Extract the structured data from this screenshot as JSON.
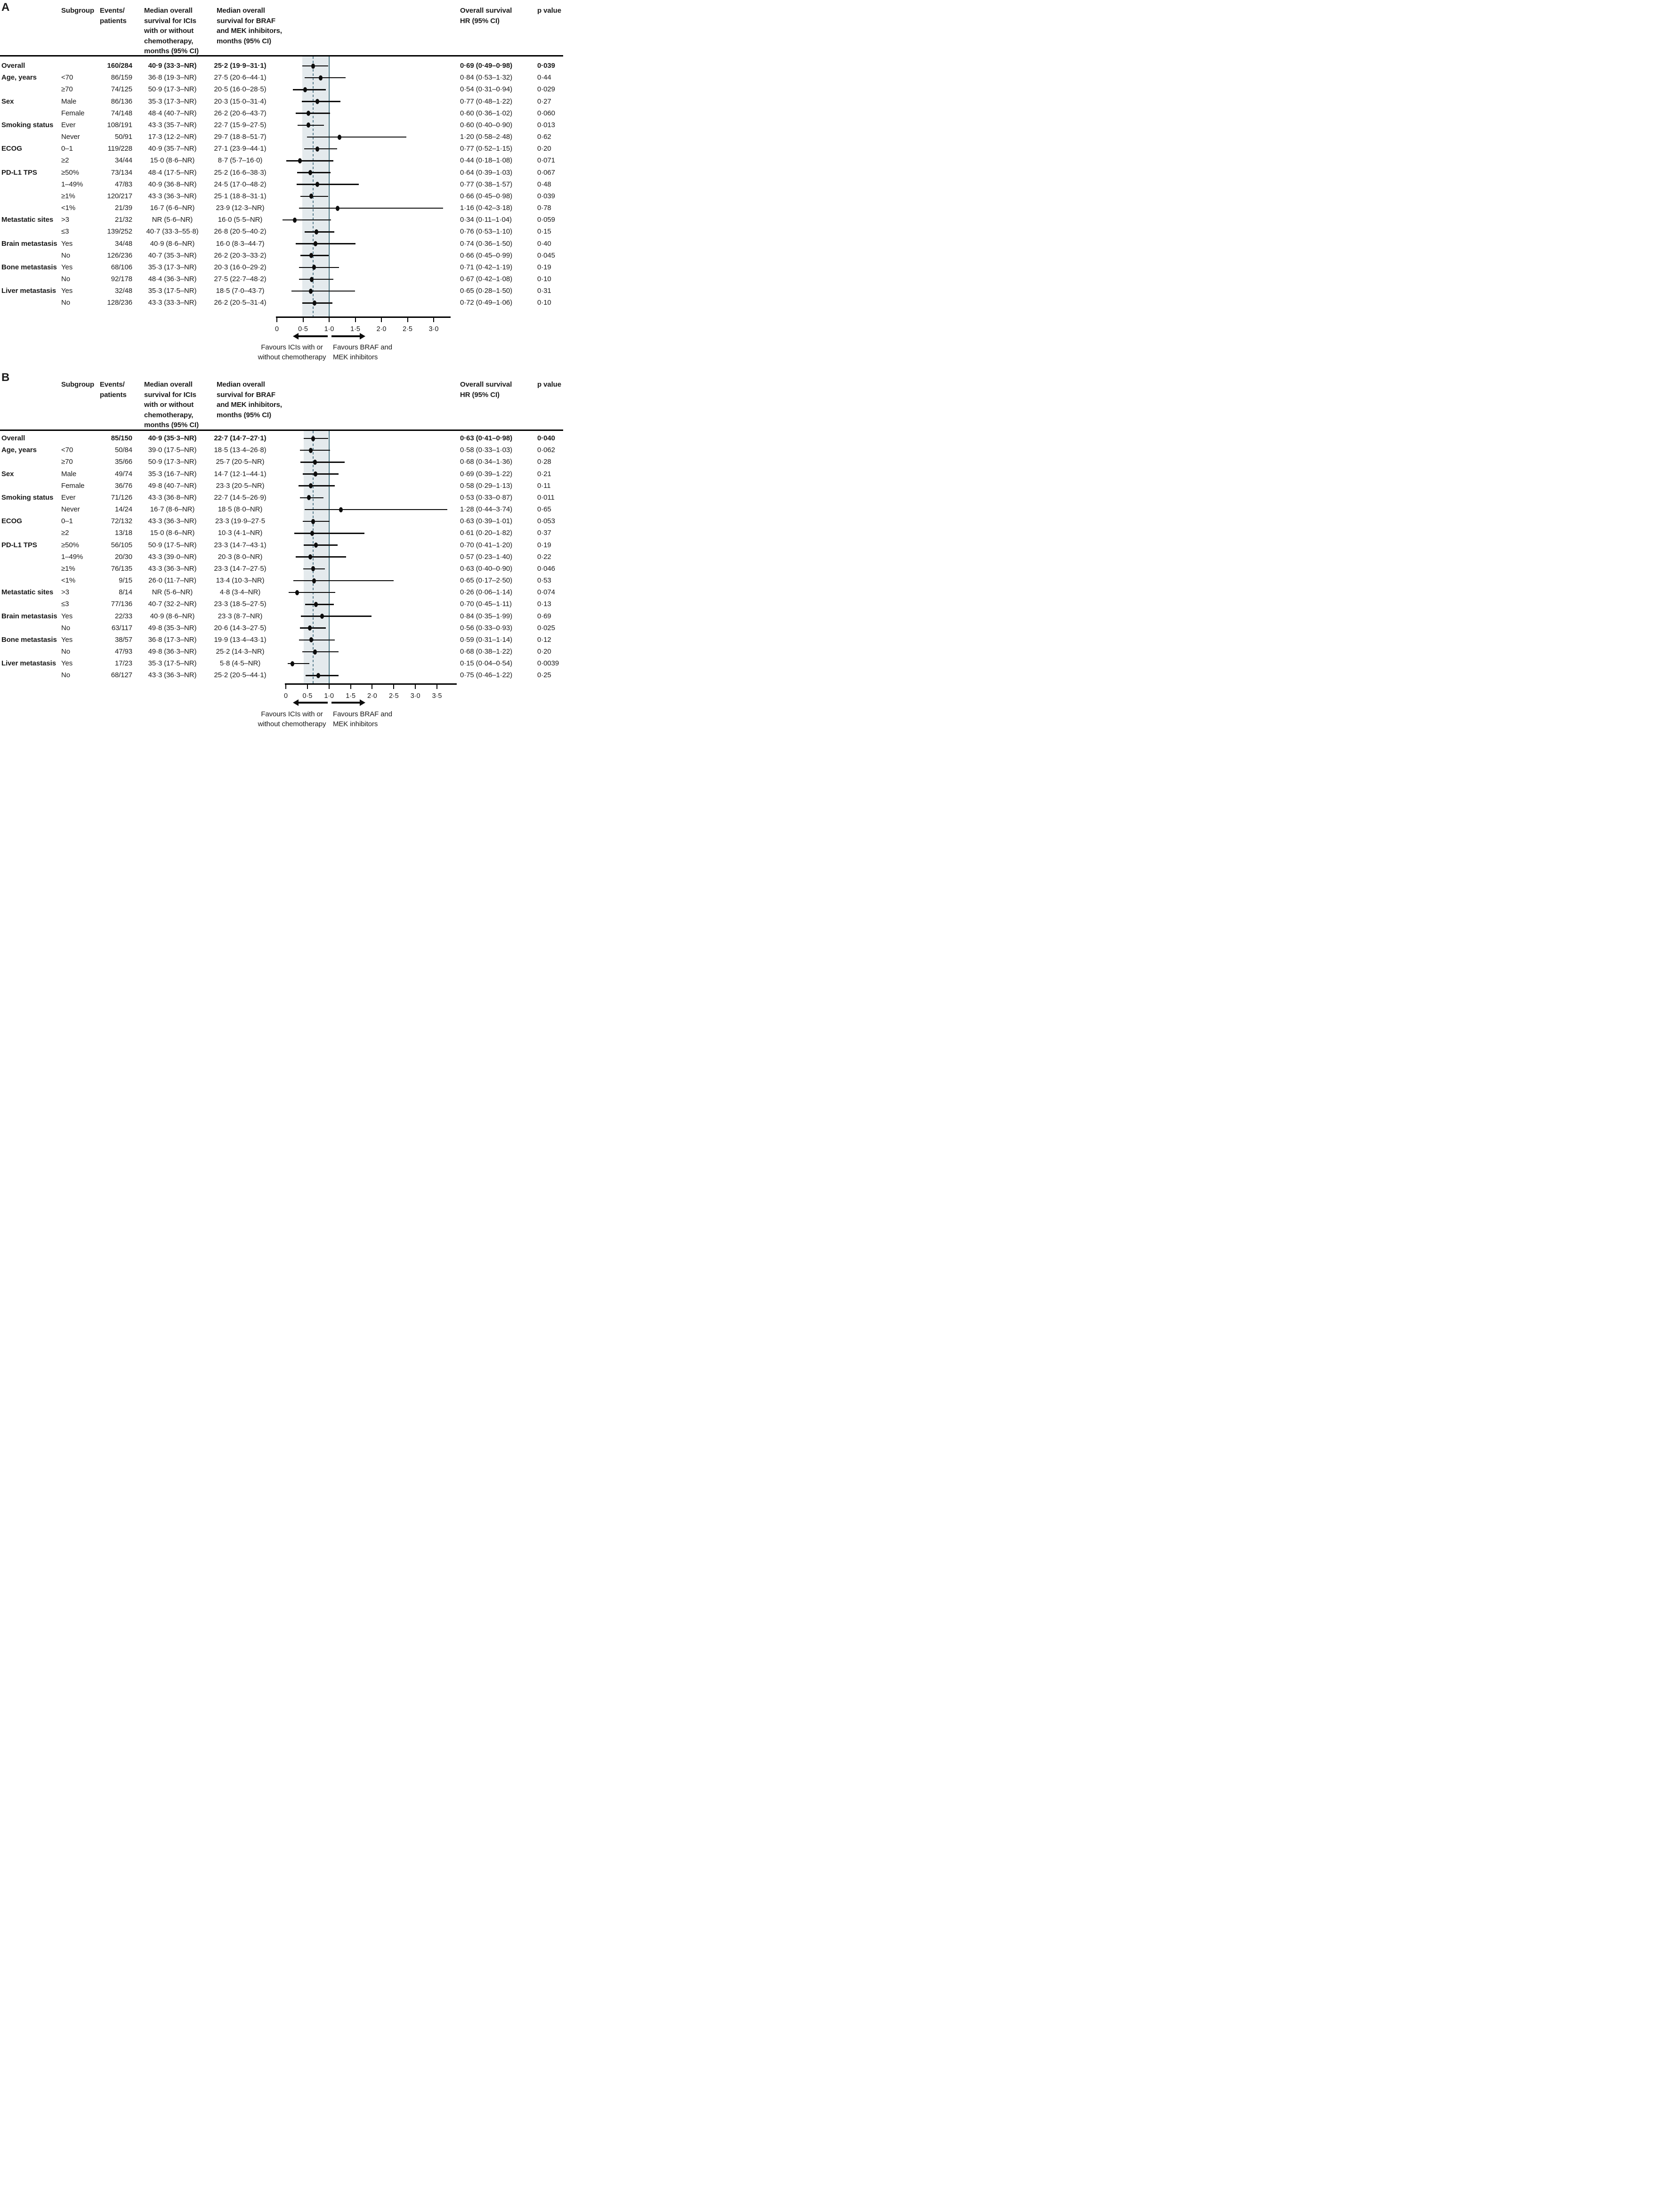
{
  "colors": {
    "band": "#e4eaed",
    "ref_line": "#44717f",
    "dashed_line": "#5c8191",
    "marker": "#0d0d0d",
    "text": "#1a1a1a"
  },
  "chart_data": [
    {
      "type": "forest",
      "panel": "A",
      "columns": {
        "subgroup": "Subgroup",
        "events": [
          "Events/",
          "patients"
        ],
        "ici": [
          "Median overall",
          "survival for ICIs",
          "with or without",
          "chemotherapy,",
          "months (95% CI)"
        ],
        "braf": [
          "Median overall",
          "survival for BRAF",
          "and MEK inhibitors,",
          "months (95% CI)"
        ],
        "hr": [
          "Overall survival",
          "HR (95% CI)"
        ],
        "p": "p value"
      },
      "axis": {
        "ticks": [
          {
            "v": 0,
            "label": "0"
          },
          {
            "v": 0.5,
            "label": "0·5"
          },
          {
            "v": 1.0,
            "label": "1·0"
          },
          {
            "v": 1.5,
            "label": "1·5"
          },
          {
            "v": 2.0,
            "label": "2·0"
          },
          {
            "v": 2.5,
            "label": "2·5"
          },
          {
            "v": 3.0,
            "label": "3·0"
          }
        ],
        "ref_line": 1.0,
        "overall_hr_line": 0.69,
        "ci_band": [
          0.49,
          0.98
        ]
      },
      "favours_left": [
        "Favours ICIs with or",
        "without chemotherapy"
      ],
      "favours_right": [
        "Favours BRAF and",
        "MEK inhibitors"
      ],
      "rows": [
        {
          "category": "Overall",
          "subgroup": "",
          "events": "160/284",
          "ici": "40·9 (33·3–NR)",
          "braf": "25·2 (19·9–31·1)",
          "hr": 0.69,
          "lo": 0.49,
          "hi": 0.98,
          "hr_text": "0·69 (0·49–0·98)",
          "p": "0·039",
          "bold": true
        },
        {
          "category": "Age, years",
          "subgroup": "<70",
          "events": "86/159",
          "ici": "36·8 (19·3–NR)",
          "braf": "27·5 (20·6–44·1)",
          "hr": 0.84,
          "lo": 0.53,
          "hi": 1.32,
          "hr_text": "0·84 (0·53–1·32)",
          "p": "0·44",
          "bold": false
        },
        {
          "category": "",
          "subgroup": "≥70",
          "events": "74/125",
          "ici": "50·9 (17·3–NR)",
          "braf": "20·5 (16·0–28·5)",
          "hr": 0.54,
          "lo": 0.31,
          "hi": 0.94,
          "hr_text": "0·54 (0·31–0·94)",
          "p": "0·029",
          "bold": false
        },
        {
          "category": "Sex",
          "subgroup": "Male",
          "events": "86/136",
          "ici": "35·3 (17·3–NR)",
          "braf": "20·3 (15·0–31·4)",
          "hr": 0.77,
          "lo": 0.48,
          "hi": 1.22,
          "hr_text": "0·77 (0·48–1·22)",
          "p": "0·27",
          "bold": false
        },
        {
          "category": "",
          "subgroup": "Female",
          "events": "74/148",
          "ici": "48·4 (40·7–NR)",
          "braf": "26·2 (20·6–43·7)",
          "hr": 0.6,
          "lo": 0.36,
          "hi": 1.02,
          "hr_text": "0·60 (0·36–1·02)",
          "p": "0·060",
          "bold": false
        },
        {
          "category": "Smoking status",
          "subgroup": "Ever",
          "events": "108/191",
          "ici": "43·3 (35·7–NR)",
          "braf": "22·7 (15·9–27·5)",
          "hr": 0.6,
          "lo": 0.4,
          "hi": 0.9,
          "hr_text": "0·60 (0·40–0·90)",
          "p": "0·013",
          "bold": false
        },
        {
          "category": "",
          "subgroup": "Never",
          "events": "50/91",
          "ici": "17·3 (12·2–NR)",
          "braf": "29·7 (18·8–51·7)",
          "hr": 1.2,
          "lo": 0.58,
          "hi": 2.48,
          "hr_text": "1·20 (0·58–2·48)",
          "p": "0·62",
          "bold": false
        },
        {
          "category": "ECOG",
          "subgroup": "0–1",
          "events": "119/228",
          "ici": "40·9 (35·7–NR)",
          "braf": "27·1 (23·9–44·1)",
          "hr": 0.77,
          "lo": 0.52,
          "hi": 1.15,
          "hr_text": "0·77 (0·52–1·15)",
          "p": "0·20",
          "bold": false
        },
        {
          "category": "",
          "subgroup": "≥2",
          "events": "34/44",
          "ici": "15·0 (8·6–NR)",
          "braf": "8·7 (5·7–16·0)",
          "hr": 0.44,
          "lo": 0.18,
          "hi": 1.08,
          "hr_text": "0·44 (0·18–1·08)",
          "p": "0·071",
          "bold": false
        },
        {
          "category": "PD-L1 TPS",
          "subgroup": "≥50%",
          "events": "73/134",
          "ici": "48·4 (17·5–NR)",
          "braf": "25·2 (16·6–38·3)",
          "hr": 0.64,
          "lo": 0.39,
          "hi": 1.03,
          "hr_text": "0·64 (0·39–1·03)",
          "p": "0·067",
          "bold": false
        },
        {
          "category": "",
          "subgroup": "1–49%",
          "events": "47/83",
          "ici": "40·9 (36·8–NR)",
          "braf": "24·5 (17·0–48·2)",
          "hr": 0.77,
          "lo": 0.38,
          "hi": 1.57,
          "hr_text": "0·77 (0·38–1·57)",
          "p": "0·48",
          "bold": false
        },
        {
          "category": "",
          "subgroup": "≥1%",
          "events": "120/217",
          "ici": "43·3 (36·3–NR)",
          "braf": "25·1 (18·8–31·1)",
          "hr": 0.66,
          "lo": 0.45,
          "hi": 0.98,
          "hr_text": "0·66 (0·45–0·98)",
          "p": "0·039",
          "bold": false
        },
        {
          "category": "",
          "subgroup": "<1%",
          "events": "21/39",
          "ici": "16·7 (6·6–NR)",
          "braf": "23·9 (12·3–NR)",
          "hr": 1.16,
          "lo": 0.42,
          "hi": 3.18,
          "hr_text": "1·16 (0·42–3·18)",
          "p": "0·78",
          "bold": false
        },
        {
          "category": "Metastatic sites",
          "subgroup": ">3",
          "events": "21/32",
          "ici": "NR (5·6–NR)",
          "braf": "16·0 (5·5–NR)",
          "hr": 0.34,
          "lo": 0.11,
          "hi": 1.04,
          "hr_text": "0·34 (0·11–1·04)",
          "p": "0·059",
          "bold": false
        },
        {
          "category": "",
          "subgroup": "≤3",
          "events": "139/252",
          "ici": "40·7 (33·3–55·8)",
          "braf": "26·8 (20·5–40·2)",
          "hr": 0.76,
          "lo": 0.53,
          "hi": 1.1,
          "hr_text": "0·76 (0·53–1·10)",
          "p": "0·15",
          "bold": false
        },
        {
          "category": "Brain metastasis",
          "subgroup": "Yes",
          "events": "34/48",
          "ici": "40·9 (8·6–NR)",
          "braf": "16·0 (8·3–44·7)",
          "hr": 0.74,
          "lo": 0.36,
          "hi": 1.5,
          "hr_text": "0·74 (0·36–1·50)",
          "p": "0·40",
          "bold": false
        },
        {
          "category": "",
          "subgroup": "No",
          "events": "126/236",
          "ici": "40·7 (35·3–NR)",
          "braf": "26·2 (20·3–33·2)",
          "hr": 0.66,
          "lo": 0.45,
          "hi": 0.99,
          "hr_text": "0·66 (0·45–0·99)",
          "p": "0·045",
          "bold": false
        },
        {
          "category": "Bone metastasis",
          "subgroup": "Yes",
          "events": "68/106",
          "ici": "35·3 (17·3–NR)",
          "braf": "20·3 (16·0–29·2)",
          "hr": 0.71,
          "lo": 0.42,
          "hi": 1.19,
          "hr_text": "0·71 (0·42–1·19)",
          "p": "0·19",
          "bold": false
        },
        {
          "category": "",
          "subgroup": "No",
          "events": "92/178",
          "ici": "48·4 (36·3–NR)",
          "braf": "27·5 (22·7–48·2)",
          "hr": 0.67,
          "lo": 0.42,
          "hi": 1.08,
          "hr_text": "0·67 (0·42–1·08)",
          "p": "0·10",
          "bold": false
        },
        {
          "category": "Liver metastasis",
          "subgroup": "Yes",
          "events": "32/48",
          "ici": "35·3 (17·5–NR)",
          "braf": "18·5 (7·0–43·7)",
          "hr": 0.65,
          "lo": 0.28,
          "hi": 1.5,
          "hr_text": "0·65 (0·28–1·50)",
          "p": "0·31",
          "bold": false
        },
        {
          "category": "",
          "subgroup": "No",
          "events": "128/236",
          "ici": "43·3 (33·3–NR)",
          "braf": "26·2 (20·5–31·4)",
          "hr": 0.72,
          "lo": 0.49,
          "hi": 1.06,
          "hr_text": "0·72 (0·49–1·06)",
          "p": "0·10",
          "bold": false
        }
      ]
    },
    {
      "type": "forest",
      "panel": "B",
      "columns": {
        "subgroup": "Subgroup",
        "events": [
          "Events/",
          "patients"
        ],
        "ici": [
          "Median overall",
          "survival for ICIs",
          "with or without",
          "chemotherapy,",
          "months (95% CI)"
        ],
        "braf": [
          "Median overall",
          "survival for BRAF",
          "and MEK inhibitors,",
          "months (95% CI)"
        ],
        "hr": [
          "Overall survival",
          "HR (95% CI)"
        ],
        "p": "p value"
      },
      "axis": {
        "ticks": [
          {
            "v": 0,
            "label": "0"
          },
          {
            "v": 0.5,
            "label": "0·5"
          },
          {
            "v": 1.0,
            "label": "1·0"
          },
          {
            "v": 1.5,
            "label": "1·5"
          },
          {
            "v": 2.0,
            "label": "2·0"
          },
          {
            "v": 2.5,
            "label": "2·5"
          },
          {
            "v": 3.0,
            "label": "3·0"
          },
          {
            "v": 3.5,
            "label": "3·5"
          }
        ],
        "ref_line": 1.0,
        "overall_hr_line": 0.63,
        "ci_band": [
          0.41,
          0.98
        ]
      },
      "favours_left": [
        "Favours ICIs with or",
        "without chemotherapy"
      ],
      "favours_right": [
        "Favours BRAF and",
        "MEK inhibitors"
      ],
      "rows": [
        {
          "category": "Overall",
          "subgroup": "",
          "events": "85/150",
          "ici": "40·9 (35·3–NR)",
          "braf": "22·7 (14·7–27·1)",
          "hr": 0.63,
          "lo": 0.41,
          "hi": 0.98,
          "hr_text": "0·63 (0·41–0·98)",
          "p": "0·040",
          "bold": true
        },
        {
          "category": "Age, years",
          "subgroup": "<70",
          "events": "50/84",
          "ici": "39·0 (17·5–NR)",
          "braf": "18·5 (13·4–26·8)",
          "hr": 0.58,
          "lo": 0.33,
          "hi": 1.03,
          "hr_text": "0·58 (0·33–1·03)",
          "p": "0·062",
          "bold": false
        },
        {
          "category": "",
          "subgroup": "≥70",
          "events": "35/66",
          "ici": "50·9 (17·3–NR)",
          "braf": "25·7 (20·5–NR)",
          "hr": 0.68,
          "lo": 0.34,
          "hi": 1.36,
          "hr_text": "0·68 (0·34–1·36)",
          "p": "0·28",
          "bold": false
        },
        {
          "category": "Sex",
          "subgroup": "Male",
          "events": "49/74",
          "ici": "35·3 (16·7–NR)",
          "braf": "14·7 (12·1–44·1)",
          "hr": 0.69,
          "lo": 0.39,
          "hi": 1.22,
          "hr_text": "0·69 (0·39–1·22)",
          "p": "0·21",
          "bold": false
        },
        {
          "category": "",
          "subgroup": "Female",
          "events": "36/76",
          "ici": "49·8 (40·7–NR)",
          "braf": "23·3 (20·5–NR)",
          "hr": 0.58,
          "lo": 0.29,
          "hi": 1.13,
          "hr_text": "0·58 (0·29–1·13)",
          "p": "0·11",
          "bold": false
        },
        {
          "category": "Smoking status",
          "subgroup": "Ever",
          "events": "71/126",
          "ici": "43·3 (36·8–NR)",
          "braf": "22·7 (14·5–26·9)",
          "hr": 0.53,
          "lo": 0.33,
          "hi": 0.87,
          "hr_text": "0·53 (0·33–0·87)",
          "p": "0·011",
          "bold": false
        },
        {
          "category": "",
          "subgroup": "Never",
          "events": "14/24",
          "ici": "16·7 (8·6–NR)",
          "braf": "18·5 (8·0–NR)",
          "hr": 1.28,
          "lo": 0.44,
          "hi": 3.74,
          "hr_text": "1·28 (0·44–3·74)",
          "p": "0·65",
          "bold": false
        },
        {
          "category": "ECOG",
          "subgroup": "0–1",
          "events": "72/132",
          "ici": "43·3 (36·3–NR)",
          "braf": "23·3 (19·9–27·5",
          "hr": 0.63,
          "lo": 0.39,
          "hi": 1.01,
          "hr_text": "0·63 (0·39–1·01)",
          "p": "0·053",
          "bold": false
        },
        {
          "category": "",
          "subgroup": "≥2",
          "events": "13/18",
          "ici": "15·0 (8·6–NR)",
          "braf": "10·3 (4·1–NR)",
          "hr": 0.61,
          "lo": 0.2,
          "hi": 1.82,
          "hr_text": "0·61 (0·20–1·82)",
          "p": "0·37",
          "bold": false
        },
        {
          "category": "PD-L1 TPS",
          "subgroup": "≥50%",
          "events": "56/105",
          "ici": "50·9 (17·5–NR)",
          "braf": "23·3 (14·7–43·1)",
          "hr": 0.7,
          "lo": 0.41,
          "hi": 1.2,
          "hr_text": "0·70 (0·41–1·20)",
          "p": "0·19",
          "bold": false
        },
        {
          "category": "",
          "subgroup": "1–49%",
          "events": "20/30",
          "ici": "43·3 (39·0–NR)",
          "braf": "20·3 (8·0–NR)",
          "hr": 0.57,
          "lo": 0.23,
          "hi": 1.4,
          "hr_text": "0·57 (0·23–1·40)",
          "p": "0·22",
          "bold": false
        },
        {
          "category": "",
          "subgroup": "≥1%",
          "events": "76/135",
          "ici": "43·3 (36·3–NR)",
          "braf": "23·3 (14·7–27·5)",
          "hr": 0.63,
          "lo": 0.4,
          "hi": 0.9,
          "hr_text": "0·63 (0·40–0·90)",
          "p": "0·046",
          "bold": false
        },
        {
          "category": "",
          "subgroup": "<1%",
          "events": "9/15",
          "ici": "26·0 (11·7–NR)",
          "braf": "13·4 (10·3–NR)",
          "hr": 0.65,
          "lo": 0.17,
          "hi": 2.5,
          "hr_text": "0·65 (0·17–2·50)",
          "p": "0·53",
          "bold": false
        },
        {
          "category": "Metastatic sites",
          "subgroup": ">3",
          "events": "8/14",
          "ici": "NR (5·6–NR)",
          "braf": "4·8 (3·4–NR)",
          "hr": 0.26,
          "lo": 0.06,
          "hi": 1.14,
          "hr_text": "0·26 (0·06–1·14)",
          "p": "0·074",
          "bold": false
        },
        {
          "category": "",
          "subgroup": "≤3",
          "events": "77/136",
          "ici": "40·7 (32·2–NR)",
          "braf": "23·3 (18·5–27·5)",
          "hr": 0.7,
          "lo": 0.45,
          "hi": 1.11,
          "hr_text": "0·70 (0·45–1·11)",
          "p": "0·13",
          "bold": false
        },
        {
          "category": "Brain metastasis",
          "subgroup": "Yes",
          "events": "22/33",
          "ici": "40·9 (8·6–NR)",
          "braf": "23·3 (8·7–NR)",
          "hr": 0.84,
          "lo": 0.35,
          "hi": 1.99,
          "hr_text": "0·84 (0·35–1·99)",
          "p": "0·69",
          "bold": false
        },
        {
          "category": "",
          "subgroup": "No",
          "events": "63/117",
          "ici": "49·8 (35·3–NR)",
          "braf": "20·6 (14·3–27·5)",
          "hr": 0.56,
          "lo": 0.33,
          "hi": 0.93,
          "hr_text": "0·56 (0·33–0·93)",
          "p": "0·025",
          "bold": false
        },
        {
          "category": "Bone metastasis",
          "subgroup": "Yes",
          "events": "38/57",
          "ici": "36·8 (17·3–NR)",
          "braf": "19·9 (13·4–43·1)",
          "hr": 0.59,
          "lo": 0.31,
          "hi": 1.14,
          "hr_text": "0·59 (0·31–1·14)",
          "p": "0·12",
          "bold": false
        },
        {
          "category": "",
          "subgroup": "No",
          "events": "47/93",
          "ici": "49·8 (36·3–NR)",
          "braf": "25·2 (14·3–NR)",
          "hr": 0.68,
          "lo": 0.38,
          "hi": 1.22,
          "hr_text": "0·68 (0·38–1·22)",
          "p": "0·20",
          "bold": false
        },
        {
          "category": "Liver metastasis",
          "subgroup": "Yes",
          "events": "17/23",
          "ici": "35·3 (17·5–NR)",
          "braf": "5·8 (4·5–NR)",
          "hr": 0.15,
          "lo": 0.04,
          "hi": 0.54,
          "hr_text": "0·15 (0·04–0·54)",
          "p": "0·0039",
          "bold": false
        },
        {
          "category": "",
          "subgroup": "No",
          "events": "68/127",
          "ici": "43·3 (36·3–NR)",
          "braf": "25·2 (20·5–44·1)",
          "hr": 0.75,
          "lo": 0.46,
          "hi": 1.22,
          "hr_text": "0·75 (0·46–1·22)",
          "p": "0·25",
          "bold": false
        }
      ]
    }
  ]
}
